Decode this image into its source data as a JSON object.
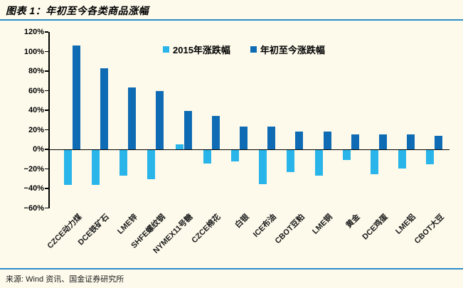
{
  "header": {
    "title": "图表 1：年初至今各类商品涨幅"
  },
  "footer": {
    "source": "来源: Wind 资讯、国金证券研究所"
  },
  "colors": {
    "background": "#fdfaeb",
    "rule_blue": "#2c8cc9",
    "axis_black": "#000000",
    "series_2015": "#29b5ea",
    "series_ytd": "#0f6cb4"
  },
  "chart_data": {
    "type": "bar",
    "title": "年初至今各类商品涨幅",
    "xlabel": "",
    "ylabel": "",
    "grid": false,
    "legend_position": "top-center",
    "ylim": [
      -60,
      120
    ],
    "ytick_step": 20,
    "y_tick_labels": [
      "120%",
      "100%",
      "80%",
      "60%",
      "40%",
      "20%",
      "0%",
      "-20%",
      "-40%",
      "-60%"
    ],
    "categories": [
      "CZCE动力煤",
      "DCE铁矿石",
      "LME锌",
      "SHFE螺纹钢",
      "NYMEX11号糖",
      "CZCE棉花",
      "白银",
      "ICE布油",
      "CBOT豆粕",
      "LME铜",
      "黄金",
      "DCE鸡蛋",
      "LME铝",
      "CBOT大豆"
    ],
    "series": [
      {
        "name": "2015年涨跌幅",
        "color_key": "series_2015",
        "values": [
          -36,
          -36,
          -26,
          -30,
          5,
          -14,
          -12,
          -35,
          -23,
          -26,
          -10,
          -25,
          -19,
          -15
        ]
      },
      {
        "name": "年初至今涨跌幅",
        "color_key": "series_ytd",
        "values": [
          106,
          83,
          63,
          60,
          39,
          34,
          23,
          23,
          18,
          18,
          15,
          15,
          15,
          14
        ]
      }
    ]
  }
}
